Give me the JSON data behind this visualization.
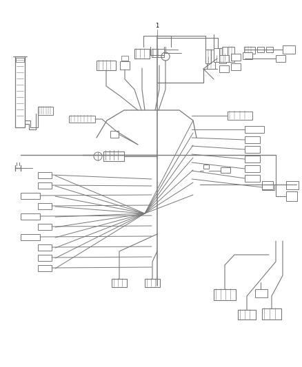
{
  "bg_color": "#ffffff",
  "lc": "#777777",
  "lc2": "#555555",
  "figsize": [
    4.38,
    5.33
  ],
  "dpi": 100
}
